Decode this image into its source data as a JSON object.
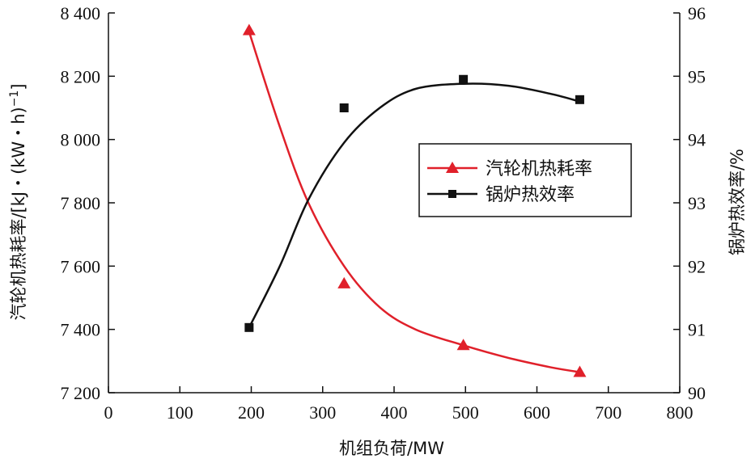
{
  "chart_data": {
    "type": "line",
    "title": "",
    "xlabel": "机组负荷/MW",
    "ylabel_left": "汽轮机热耗率/[kJ・(kW・h)",
    "ylabel_left_sup": "−1",
    "ylabel_left_end": "]",
    "ylabel_right": "锅炉热效率/%",
    "x_ticks": [
      0,
      100,
      200,
      300,
      400,
      500,
      600,
      700,
      800
    ],
    "x_tick_labels": [
      "0",
      "100",
      "200",
      "300",
      "400",
      "500",
      "600",
      "700",
      "800"
    ],
    "xlim": [
      0,
      800
    ],
    "y_left_ticks": [
      7200,
      7400,
      7600,
      7800,
      8000,
      8200,
      8400
    ],
    "y_left_tick_labels": [
      "7 200",
      "7 400",
      "7 600",
      "7 800",
      "8 000",
      "8 200",
      "8 400"
    ],
    "ylim_left": [
      7200,
      8400
    ],
    "y_right_ticks": [
      90,
      91,
      92,
      93,
      94,
      95,
      96
    ],
    "y_right_tick_labels": [
      "90",
      "91",
      "92",
      "93",
      "94",
      "95",
      "96"
    ],
    "ylim_right": [
      90,
      96
    ],
    "legend_position": "center-right",
    "grid": false,
    "series": [
      {
        "name": "汽轮机热耗率",
        "axis": "left",
        "marker": "triangle",
        "color": "#e0202a",
        "points": [
          {
            "x": 197,
            "y": 8345
          },
          {
            "x": 330,
            "y": 7545
          },
          {
            "x": 497,
            "y": 7350
          },
          {
            "x": 660,
            "y": 7265
          }
        ],
        "curve": [
          {
            "x": 197,
            "y": 8340
          },
          {
            "x": 240,
            "y": 8040
          },
          {
            "x": 280,
            "y": 7800
          },
          {
            "x": 330,
            "y": 7600
          },
          {
            "x": 380,
            "y": 7470
          },
          {
            "x": 430,
            "y": 7400
          },
          {
            "x": 497,
            "y": 7350
          },
          {
            "x": 560,
            "y": 7310
          },
          {
            "x": 620,
            "y": 7280
          },
          {
            "x": 660,
            "y": 7265
          }
        ]
      },
      {
        "name": "锅炉热效率",
        "axis": "right",
        "marker": "square",
        "color": "#111111",
        "points": [
          {
            "x": 197,
            "y": 91.03
          },
          {
            "x": 330,
            "y": 94.5
          },
          {
            "x": 497,
            "y": 94.95
          },
          {
            "x": 660,
            "y": 94.63
          }
        ],
        "curve": [
          {
            "x": 197,
            "y": 91.03
          },
          {
            "x": 240,
            "y": 92.0
          },
          {
            "x": 280,
            "y": 93.05
          },
          {
            "x": 330,
            "y": 93.95
          },
          {
            "x": 380,
            "y": 94.5
          },
          {
            "x": 430,
            "y": 94.8
          },
          {
            "x": 497,
            "y": 94.88
          },
          {
            "x": 560,
            "y": 94.85
          },
          {
            "x": 620,
            "y": 94.72
          },
          {
            "x": 660,
            "y": 94.6
          }
        ]
      }
    ]
  }
}
